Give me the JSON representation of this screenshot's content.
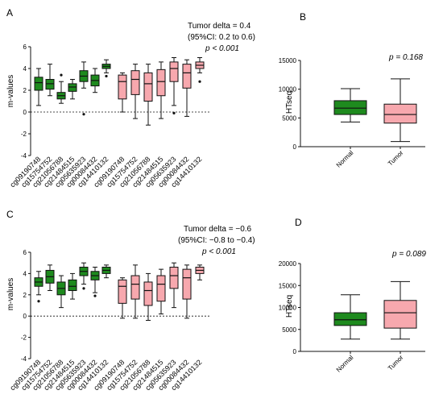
{
  "colors": {
    "normal": "#1e8a1e",
    "tumor": "#f7a8ae",
    "stroke": "#111111"
  },
  "chart_data": [
    {
      "panel": "A",
      "type": "box",
      "ylabel": "m-values",
      "ylim": [
        -4,
        6
      ],
      "yticks": [
        -4,
        -2,
        0,
        2,
        4,
        6
      ],
      "annotation": [
        "Tumor delta = 0.4",
        "(95%CI: 0.2 to 0.6)",
        "p < 0.001"
      ],
      "categories": [
        "cg09190748",
        "cg15754752",
        "cg21056788",
        "cg21484515",
        "cg05635923",
        "cg00084432",
        "cg14410132",
        "cg09190748",
        "cg15754752",
        "cg21056788",
        "cg21484515",
        "cg05635923",
        "cg00084432",
        "cg14410132"
      ],
      "groups": [
        "normal",
        "normal",
        "normal",
        "normal",
        "normal",
        "normal",
        "normal",
        "tumor",
        "tumor",
        "tumor",
        "tumor",
        "tumor",
        "tumor",
        "tumor"
      ],
      "boxes": [
        {
          "min": 0.6,
          "q1": 2.0,
          "median": 2.7,
          "q3": 3.2,
          "max": 4.0
        },
        {
          "min": 1.5,
          "q1": 2.1,
          "median": 2.6,
          "q3": 3.0,
          "max": 4.4
        },
        {
          "min": 0.8,
          "q1": 1.2,
          "median": 1.5,
          "q3": 1.8,
          "max": 2.8,
          "outliers": [
            3.4
          ]
        },
        {
          "min": 1.2,
          "q1": 1.9,
          "median": 2.3,
          "q3": 2.6,
          "max": 3.0
        },
        {
          "min": 2.2,
          "q1": 2.8,
          "median": 3.3,
          "q3": 3.8,
          "max": 4.6,
          "outliers": [
            -0.2
          ]
        },
        {
          "min": 1.8,
          "q1": 2.4,
          "median": 2.9,
          "q3": 3.4,
          "max": 4.0
        },
        {
          "min": 3.6,
          "q1": 4.0,
          "median": 4.2,
          "q3": 4.4,
          "max": 4.8,
          "outliers": [
            3.3
          ]
        },
        {
          "min": 0.0,
          "q1": 1.2,
          "median": 2.8,
          "q3": 3.4,
          "max": 3.6
        },
        {
          "min": -0.6,
          "q1": 1.6,
          "median": 3.0,
          "q3": 3.8,
          "max": 4.4
        },
        {
          "min": -1.2,
          "q1": 1.0,
          "median": 2.6,
          "q3": 3.6,
          "max": 4.4
        },
        {
          "min": -0.6,
          "q1": 1.5,
          "median": 2.8,
          "q3": 3.9,
          "max": 4.6
        },
        {
          "min": 0.6,
          "q1": 2.8,
          "median": 4.0,
          "q3": 4.6,
          "max": 5.0,
          "outliers": [
            -0.1
          ]
        },
        {
          "min": -0.4,
          "q1": 2.2,
          "median": 3.6,
          "q3": 4.4,
          "max": 4.8
        },
        {
          "min": 3.6,
          "q1": 4.0,
          "median": 4.3,
          "q3": 4.6,
          "max": 5.0,
          "outliers": [
            2.8
          ]
        }
      ]
    },
    {
      "panel": "B",
      "type": "box",
      "ylabel": "HTseq",
      "ylim": [
        0,
        15000
      ],
      "yticks": [
        0,
        5000,
        10000,
        15000
      ],
      "annotation": [
        "p = 0.168"
      ],
      "categories": [
        "Normal",
        "Tumor"
      ],
      "groups": [
        "normal",
        "tumor"
      ],
      "boxes": [
        {
          "min": 4300,
          "q1": 5600,
          "median": 6700,
          "q3": 8000,
          "max": 10100
        },
        {
          "min": 900,
          "q1": 4100,
          "median": 5600,
          "q3": 7400,
          "max": 11800
        }
      ]
    },
    {
      "panel": "C",
      "type": "box",
      "ylabel": "m-values",
      "ylim": [
        -4,
        6
      ],
      "yticks": [
        -4,
        -2,
        0,
        2,
        4,
        6
      ],
      "annotation": [
        "Tumor delta = −0.6",
        "(95%CI: −0.8 to −0.4)",
        "p < 0.001"
      ],
      "categories": [
        "cg09190748",
        "cg15754752",
        "cg21056788",
        "cg21484515",
        "cg05635923",
        "cg00084432",
        "cg14410132",
        "cg09190748",
        "cg15754752",
        "cg21056788",
        "cg21484515",
        "cg05635923",
        "cg00084432",
        "cg14410132"
      ],
      "groups": [
        "normal",
        "normal",
        "normal",
        "normal",
        "normal",
        "normal",
        "normal",
        "tumor",
        "tumor",
        "tumor",
        "tumor",
        "tumor",
        "tumor",
        "tumor"
      ],
      "boxes": [
        {
          "min": 2.0,
          "q1": 2.8,
          "median": 3.2,
          "q3": 3.6,
          "max": 4.2,
          "outliers": [
            1.4
          ]
        },
        {
          "min": 2.4,
          "q1": 3.1,
          "median": 3.7,
          "q3": 4.3,
          "max": 4.8
        },
        {
          "min": 0.8,
          "q1": 2.0,
          "median": 2.6,
          "q3": 3.2,
          "max": 3.8
        },
        {
          "min": 1.6,
          "q1": 2.4,
          "median": 2.8,
          "q3": 3.4,
          "max": 4.0
        },
        {
          "min": 3.0,
          "q1": 3.8,
          "median": 4.2,
          "q3": 4.6,
          "max": 5.0,
          "outliers": [
            2.6
          ]
        },
        {
          "min": 2.2,
          "q1": 3.4,
          "median": 3.8,
          "q3": 4.2,
          "max": 4.6,
          "outliers": [
            1.9
          ]
        },
        {
          "min": 3.6,
          "q1": 4.0,
          "median": 4.3,
          "q3": 4.6,
          "max": 4.8
        }
      ]
    },
    {
      "panel": "C-tumor",
      "type": "box",
      "boxes": [
        {
          "min": -0.2,
          "q1": 1.2,
          "median": 2.8,
          "q3": 3.4,
          "max": 3.6
        },
        {
          "min": -0.2,
          "q1": 1.6,
          "median": 3.0,
          "q3": 3.8,
          "max": 4.8
        },
        {
          "min": -0.4,
          "q1": 1.0,
          "median": 2.4,
          "q3": 3.2,
          "max": 4.0
        },
        {
          "min": 0.2,
          "q1": 1.4,
          "median": 3.0,
          "q3": 3.8,
          "max": 4.4
        },
        {
          "min": 0.8,
          "q1": 2.6,
          "median": 3.8,
          "q3": 4.6,
          "max": 5.0
        },
        {
          "min": -0.2,
          "q1": 1.6,
          "median": 3.6,
          "q3": 4.4,
          "max": 4.8
        },
        {
          "min": 3.4,
          "q1": 4.0,
          "median": 4.3,
          "q3": 4.6,
          "max": 4.8
        }
      ]
    },
    {
      "panel": "D",
      "type": "box",
      "ylabel": "HTseq",
      "ylim": [
        0,
        20000
      ],
      "yticks": [
        0,
        5000,
        10000,
        15000,
        20000
      ],
      "annotation": [
        "p = 0.089"
      ],
      "categories": [
        "Normal",
        "Tumor"
      ],
      "groups": [
        "normal",
        "tumor"
      ],
      "boxes": [
        {
          "min": 2800,
          "q1": 5900,
          "median": 7200,
          "q3": 8800,
          "max": 12900
        },
        {
          "min": 2800,
          "q1": 5300,
          "median": 8800,
          "q3": 11600,
          "max": 15900
        }
      ]
    }
  ]
}
